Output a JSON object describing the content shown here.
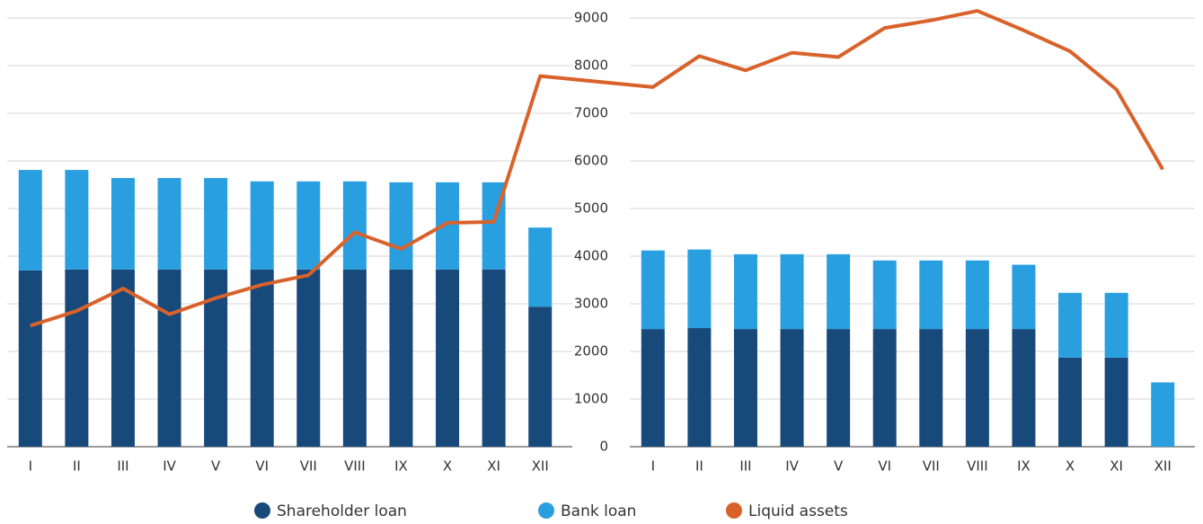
{
  "chart_data": {
    "type": "bar",
    "stacked": true,
    "categories": [
      "I",
      "II",
      "III",
      "IV",
      "V",
      "VI",
      "VII",
      "VIII",
      "IX",
      "X",
      "XI",
      "XII",
      "I",
      "II",
      "III",
      "IV",
      "V",
      "VI",
      "VII",
      "VIII",
      "IX",
      "X",
      "XI",
      "XII"
    ],
    "series": [
      {
        "name": "Shareholder loan",
        "color": "#17497a",
        "type": "bar",
        "values": [
          3700,
          3720,
          3720,
          3720,
          3720,
          3720,
          3720,
          3720,
          3720,
          3720,
          3720,
          2940,
          2470,
          2490,
          2470,
          2470,
          2470,
          2470,
          2470,
          2470,
          2470,
          1870,
          1870,
          0
        ]
      },
      {
        "name": "Bank loan",
        "color": "#2a9fe0",
        "type": "bar",
        "values": [
          2110,
          2090,
          1920,
          1920,
          1920,
          1850,
          1850,
          1850,
          1830,
          1830,
          1830,
          1660,
          1650,
          1650,
          1570,
          1570,
          1570,
          1440,
          1440,
          1440,
          1350,
          1360,
          1360,
          1350
        ]
      },
      {
        "name": "Liquid assets",
        "color": "#d9622b",
        "type": "line",
        "values": [
          2540,
          2850,
          3320,
          2780,
          3120,
          3400,
          3600,
          4500,
          4150,
          4700,
          4720,
          7780,
          7550,
          8200,
          7900,
          8270,
          8180,
          8790,
          8950,
          9150,
          8740,
          8300,
          7500,
          5820
        ]
      }
    ],
    "ylim": [
      0,
      9000
    ],
    "yticks": [
      0,
      1000,
      2000,
      3000,
      4000,
      5000,
      6000,
      7000,
      8000,
      9000
    ],
    "grid": true,
    "legend": "bottom"
  }
}
